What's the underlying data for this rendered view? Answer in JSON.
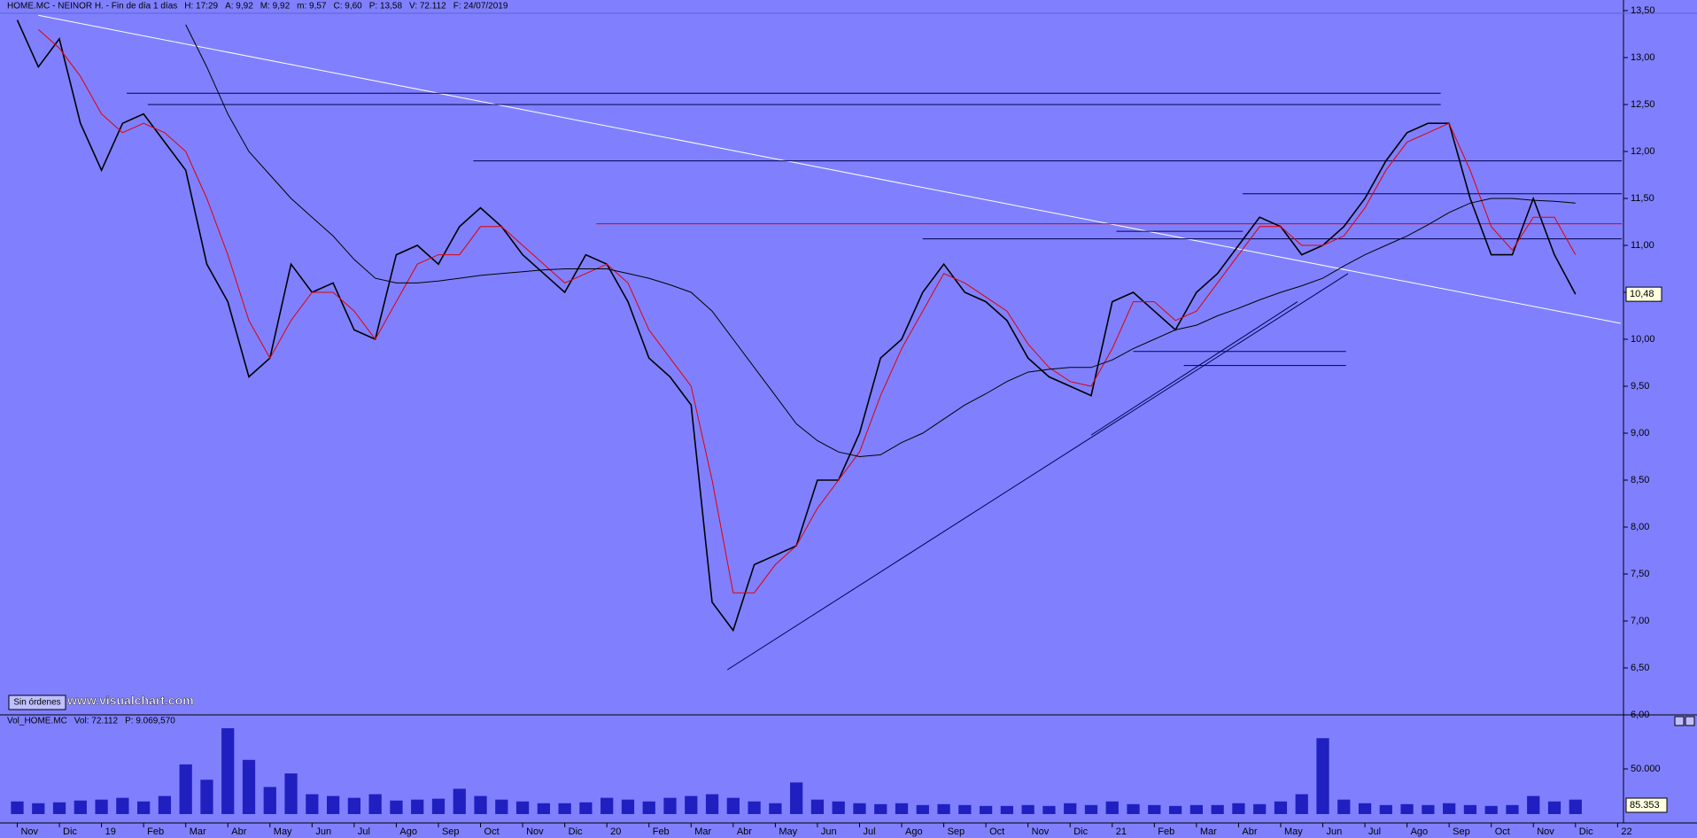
{
  "chart_data": [
    {
      "type": "line",
      "title_parts": [
        {
          "text": "HOME.MC - NEINOR H. - Fin de día 1 días",
          "color": "#000000"
        },
        {
          "text": "H: 17:29",
          "color": "#000000"
        },
        {
          "text": "A: 9,92",
          "color": "#000000"
        },
        {
          "text": "M: 9,92",
          "color": "#000000"
        },
        {
          "text": "m: 9,57",
          "color": "#000000"
        },
        {
          "text": "C: 9,60",
          "color": "#000000"
        },
        {
          "text": "P: 13,58",
          "color": "#e00000"
        },
        {
          "text": "V: 72.112",
          "color": "#000000"
        },
        {
          "text": "F: 24/07/2019",
          "color": "#000000"
        }
      ],
      "x": [
        0,
        0.5,
        1,
        1.5,
        2,
        2.5,
        3,
        3.5,
        4,
        4.5,
        5,
        5.5,
        6,
        6.5,
        7,
        7.5,
        8,
        8.5,
        9,
        9.5,
        10,
        10.5,
        11,
        11.5,
        12,
        12.5,
        13,
        13.5,
        14,
        14.5,
        15,
        15.5,
        16,
        16.5,
        17,
        17.5,
        18,
        18.5,
        19,
        19.5,
        20,
        20.5,
        21,
        21.5,
        22,
        22.5,
        23,
        23.5,
        24,
        24.5,
        25,
        25.5,
        26,
        26.5,
        27,
        27.5,
        28,
        28.5,
        29,
        29.5,
        30,
        30.5,
        31,
        31.5,
        32,
        32.5,
        33,
        33.5,
        34,
        34.5,
        35,
        35.5,
        36,
        36.5,
        37
      ],
      "series": [
        {
          "color": "#000000",
          "values": [
            13.4,
            12.9,
            13.2,
            12.3,
            11.8,
            12.3,
            12.4,
            12.1,
            11.8,
            10.8,
            10.4,
            9.6,
            9.8,
            10.8,
            10.5,
            10.6,
            10.1,
            10.0,
            10.9,
            11.0,
            10.8,
            11.2,
            11.4,
            11.2,
            10.9,
            10.7,
            10.5,
            10.9,
            10.8,
            10.4,
            9.8,
            9.6,
            9.3,
            7.2,
            6.9,
            7.6,
            7.7,
            7.8,
            8.5,
            8.5,
            9.0,
            9.8,
            10.0,
            10.5,
            10.8,
            10.5,
            10.4,
            10.2,
            9.8,
            9.6,
            9.5,
            9.4,
            10.4,
            10.5,
            10.3,
            10.1,
            10.5,
            10.7,
            11.0,
            11.3,
            11.2,
            10.9,
            11.0,
            11.2,
            11.5,
            11.9,
            12.2,
            12.3,
            12.3,
            11.5,
            10.9,
            10.9,
            11.5,
            10.9,
            10.48
          ]
        },
        {
          "color": "#e00000",
          "values": [
            null,
            13.3,
            13.1,
            12.8,
            12.4,
            12.2,
            12.3,
            12.2,
            12.0,
            11.5,
            10.9,
            10.2,
            9.8,
            10.2,
            10.5,
            10.5,
            10.3,
            10.0,
            10.4,
            10.8,
            10.9,
            10.9,
            11.2,
            11.2,
            11.0,
            10.8,
            10.6,
            10.7,
            10.8,
            10.6,
            10.1,
            9.8,
            9.5,
            8.5,
            7.3,
            7.3,
            7.6,
            7.8,
            8.2,
            8.5,
            8.8,
            9.4,
            9.9,
            10.3,
            10.7,
            10.6,
            10.45,
            10.3,
            9.95,
            9.7,
            9.55,
            9.5,
            9.9,
            10.4,
            10.4,
            10.2,
            10.3,
            10.6,
            10.9,
            11.2,
            11.2,
            11.0,
            11.0,
            11.1,
            11.4,
            11.8,
            12.1,
            12.2,
            12.3,
            11.8,
            11.2,
            10.95,
            11.3,
            11.3,
            10.9
          ]
        },
        {
          "color": "#000000",
          "values": [
            null,
            null,
            null,
            null,
            null,
            null,
            null,
            null,
            13.35,
            12.9,
            12.4,
            12.0,
            11.75,
            11.5,
            11.3,
            11.1,
            10.85,
            10.65,
            10.6,
            10.6,
            10.62,
            10.65,
            10.68,
            10.7,
            10.72,
            10.74,
            10.75,
            10.75,
            10.75,
            10.7,
            10.65,
            10.58,
            10.5,
            10.3,
            10.0,
            9.7,
            9.4,
            9.1,
            8.92,
            8.8,
            8.75,
            8.77,
            8.9,
            9.0,
            9.15,
            9.3,
            9.42,
            9.55,
            9.65,
            9.68,
            9.7,
            9.7,
            9.78,
            9.9,
            10.0,
            10.1,
            10.15,
            10.25,
            10.33,
            10.42,
            10.5,
            10.57,
            10.65,
            10.78,
            10.9,
            11.0,
            11.1,
            11.22,
            11.35,
            11.45,
            11.5,
            11.5,
            11.48,
            11.47,
            11.45
          ]
        }
      ],
      "lines": [
        {
          "x": [
            0.5,
            38.07
          ],
          "y": [
            13.45,
            10.17
          ],
          "color": "#ffffff"
        },
        {
          "x": [
            2.6,
            33.8
          ],
          "y": [
            12.62,
            12.62
          ],
          "color": "#000050"
        },
        {
          "x": [
            3.1,
            33.8
          ],
          "y": [
            12.5,
            12.5
          ],
          "color": "#000050"
        },
        {
          "x": [
            10.83,
            38.1
          ],
          "y": [
            11.9,
            11.9
          ],
          "color": "#000050"
        },
        {
          "x": [
            29.1,
            38.1
          ],
          "y": [
            11.55,
            11.55
          ],
          "color": "#000050"
        },
        {
          "x": [
            13.75,
            38.1
          ],
          "y": [
            11.23,
            11.23
          ],
          "color": "#e00000"
        },
        {
          "x": [
            21.5,
            38.1
          ],
          "y": [
            11.07,
            11.07
          ],
          "color": "#000050"
        },
        {
          "x": [
            26.1,
            29.1
          ],
          "y": [
            11.15,
            11.15
          ],
          "color": "#000050"
        },
        {
          "x": [
            26.5,
            31.55
          ],
          "y": [
            9.87,
            9.87
          ],
          "color": "#000050"
        },
        {
          "x": [
            27.7,
            31.55
          ],
          "y": [
            9.72,
            9.72
          ],
          "color": "#000050"
        },
        {
          "x": [
            16.86,
            31.6
          ],
          "y": [
            6.48,
            10.7
          ],
          "color": "#000050"
        },
        {
          "x": [
            25.5,
            30.4
          ],
          "y": [
            8.98,
            10.4
          ],
          "color": "#000050"
        }
      ],
      "last_price": {
        "value": 10.48,
        "label": "10,48"
      },
      "xlim": [
        -0.41,
        38.14
      ],
      "xticks": [
        {
          "value": 0,
          "label": "Nov"
        },
        {
          "value": 1,
          "label": "Dic"
        },
        {
          "value": 2,
          "label": "19"
        },
        {
          "value": 3,
          "label": "Feb"
        },
        {
          "value": 4,
          "label": "Mar"
        },
        {
          "value": 5,
          "label": "Abr"
        },
        {
          "value": 6,
          "label": "May"
        },
        {
          "value": 7,
          "label": "Jun"
        },
        {
          "value": 8,
          "label": "Jul"
        },
        {
          "value": 9,
          "label": "Ago"
        },
        {
          "value": 10,
          "label": "Sep"
        },
        {
          "value": 11,
          "label": "Oct"
        },
        {
          "value": 12,
          "label": "Nov"
        },
        {
          "value": 13,
          "label": "Dic"
        },
        {
          "value": 14,
          "label": "20"
        },
        {
          "value": 15,
          "label": "Feb"
        },
        {
          "value": 16,
          "label": "Mar"
        },
        {
          "value": 17,
          "label": "Abr"
        },
        {
          "value": 18,
          "label": "May"
        },
        {
          "value": 19,
          "label": "Jun"
        },
        {
          "value": 20,
          "label": "Jul"
        },
        {
          "value": 21,
          "label": "Ago"
        },
        {
          "value": 22,
          "label": "Sep"
        },
        {
          "value": 23,
          "label": "Oct"
        },
        {
          "value": 24,
          "label": "Nov"
        },
        {
          "value": 25,
          "label": "Dic"
        },
        {
          "value": 26,
          "label": "21"
        },
        {
          "value": 27,
          "label": "Feb"
        },
        {
          "value": 28,
          "label": "Mar"
        },
        {
          "value": 29,
          "label": "Abr"
        },
        {
          "value": 30,
          "label": "May"
        },
        {
          "value": 31,
          "label": "Jun"
        },
        {
          "value": 32,
          "label": "Jul"
        },
        {
          "value": 33,
          "label": "Ago"
        },
        {
          "value": 34,
          "label": "Sep"
        },
        {
          "value": 35,
          "label": "Oct"
        },
        {
          "value": 36,
          "label": "Nov"
        },
        {
          "value": 37,
          "label": "Dic"
        },
        {
          "value": 38,
          "label": "22"
        }
      ],
      "ylim": [
        6,
        13.5
      ],
      "yticks": [
        {
          "value": 6,
          "label": "6,00"
        },
        {
          "value": 6.5,
          "label": "6,50"
        },
        {
          "value": 7,
          "label": "7,00"
        },
        {
          "value": 7.5,
          "label": "7,50"
        },
        {
          "value": 8,
          "label": "8,00"
        },
        {
          "value": 8.5,
          "label": "8,50"
        },
        {
          "value": 9,
          "label": "9,00"
        },
        {
          "value": 9.5,
          "label": "9,50"
        },
        {
          "value": 10,
          "label": "10,00"
        },
        {
          "value": 10.5,
          "label": "10,50"
        },
        {
          "value": 11,
          "label": "11,00"
        },
        {
          "value": 11.5,
          "label": "11,50"
        },
        {
          "value": 12,
          "label": "12,00"
        },
        {
          "value": 12.5,
          "label": "12,50"
        },
        {
          "value": 13,
          "label": "13,00"
        },
        {
          "value": 13.5,
          "label": "13,50"
        }
      ],
      "button": "Sin órdenes",
      "watermark": "www.visualchart.com"
    },
    {
      "type": "bar",
      "title_parts": [
        {
          "text": "Vol_HOME.MC",
          "color": "#000000"
        },
        {
          "text": "Vol: 72.112",
          "color": "#000000"
        },
        {
          "text": "P: 9.069,570",
          "color": "#e00000"
        }
      ],
      "color": "#2020c0",
      "values": [
        14000,
        12000,
        13000,
        15000,
        16000,
        18000,
        14000,
        20000,
        55000,
        38000,
        95000,
        60000,
        30000,
        45000,
        22000,
        20000,
        18000,
        22000,
        15000,
        16000,
        17000,
        28000,
        20000,
        16000,
        14000,
        12000,
        12000,
        13000,
        18000,
        16000,
        14000,
        18000,
        20000,
        22000,
        18000,
        14000,
        12000,
        35000,
        16000,
        14000,
        12000,
        11000,
        12000,
        10000,
        11000,
        10000,
        9000,
        9000,
        10000,
        9000,
        12000,
        10000,
        14000,
        11000,
        10000,
        9000,
        10000,
        10000,
        12000,
        11000,
        14000,
        22000,
        84000,
        16000,
        12000,
        10000,
        11000,
        10000,
        12000,
        10000,
        9000,
        10000,
        20000,
        14000,
        16000
      ],
      "ylim": [
        0,
        100000
      ],
      "yticks": [
        {
          "value": 50000,
          "label": "50.000"
        }
      ],
      "last_label": "85.353"
    }
  ]
}
